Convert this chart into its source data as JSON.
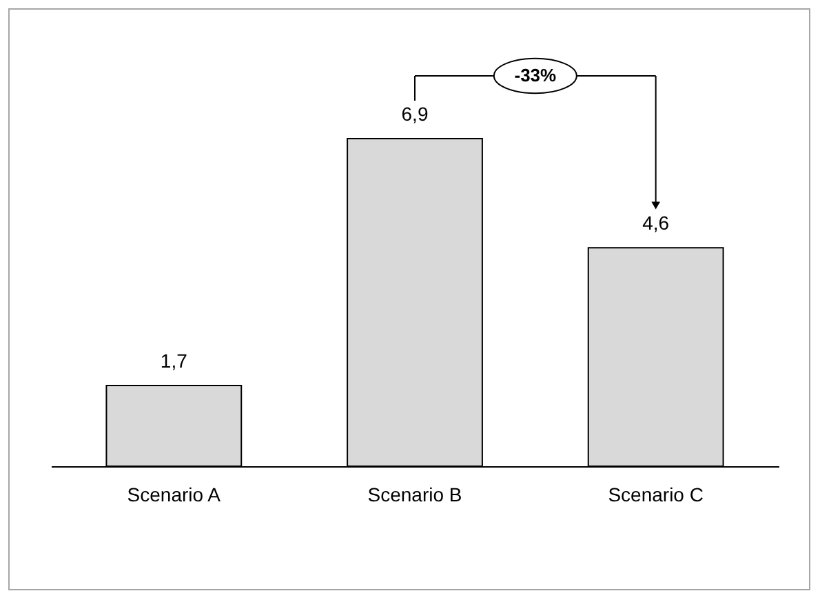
{
  "chart_data": {
    "type": "bar",
    "categories": [
      "Scenario A",
      "Scenario B",
      "Scenario C"
    ],
    "values": [
      1.7,
      6.9,
      4.6
    ],
    "value_labels": [
      "1,7",
      "6,9",
      "4,6"
    ],
    "color": "#d9d9d9",
    "annotations": [
      "-33%"
    ]
  }
}
